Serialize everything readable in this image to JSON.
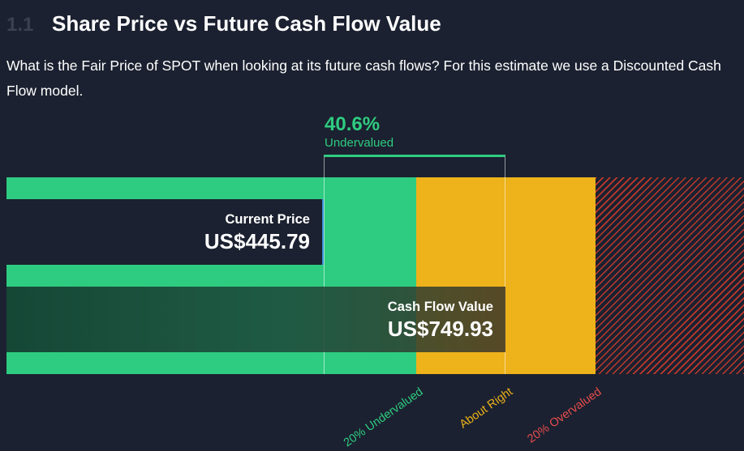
{
  "section": {
    "number": "1.1",
    "title": "Share Price vs Future Cash Flow Value",
    "description": "What is the Fair Price of SPOT when looking at its future cash flows? For this estimate we use a Discounted Cash Flow model."
  },
  "chart_data": {
    "type": "bar",
    "title": "",
    "categories": [
      "Current Price",
      "Cash Flow Value"
    ],
    "values": [
      445.79,
      749.93
    ],
    "value_labels": [
      "US$445.79",
      "US$749.93"
    ],
    "currency": "US$",
    "difference": {
      "percent": "40.6%",
      "label": "Undervalued"
    },
    "zones": [
      {
        "label": "20% Undervalued",
        "color": "#2ecc80"
      },
      {
        "label": "About Right",
        "color": "#eeb21a"
      },
      {
        "label": "20% Overvalued",
        "color": "#e74c4c"
      }
    ]
  }
}
